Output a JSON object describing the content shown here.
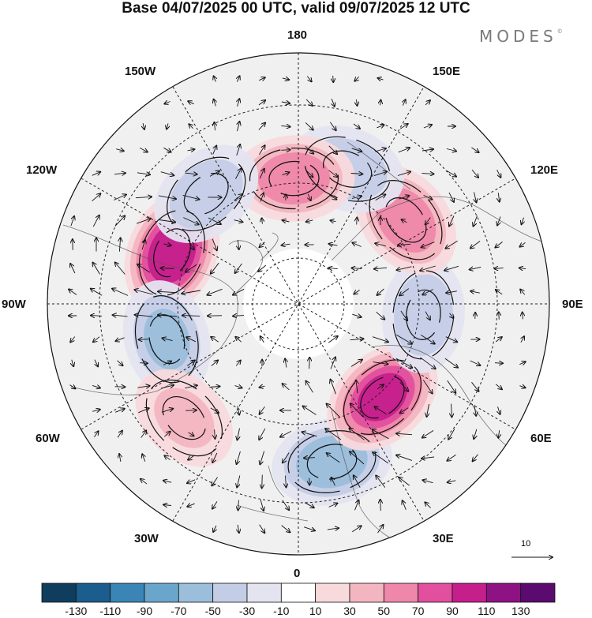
{
  "title": "Base 04/07/2025 00 UTC, valid 09/07/2025 12 UTC",
  "brand": "MODES",
  "brand_mark": "©",
  "longitude_labels": {
    "n180": "180",
    "e150": "150E",
    "e120": "120E",
    "e90": "90E",
    "e60": "60E",
    "e30": "30E",
    "s0": "0",
    "w30": "30W",
    "w60": "60W",
    "w90": "90W",
    "w120": "120W",
    "w150": "150W"
  },
  "reference_vector": {
    "label": "10"
  },
  "colorbar": {
    "ticks": [
      "-130",
      "-110",
      "-90",
      "-70",
      "-50",
      "-30",
      "-10",
      "10",
      "30",
      "50",
      "70",
      "90",
      "110",
      "130"
    ],
    "colors": [
      "#0f3d5e",
      "#1b5d8c",
      "#3a85b5",
      "#6aa6cc",
      "#9bbedb",
      "#c4cde6",
      "#e4e4f0",
      "#ffffff",
      "#f8d9dc",
      "#f3b6c0",
      "#ee87a9",
      "#e14f9e",
      "#c51f8c",
      "#8e1283",
      "#5b0a6f"
    ]
  },
  "map": {
    "projection": "north polar stereographic",
    "anomaly_centers": [
      {
        "lon": -112,
        "lat": 52,
        "value": 110
      },
      {
        "lon": -75,
        "lat": 52,
        "value": -60
      },
      {
        "lon": -45,
        "lat": 45,
        "value": 40
      },
      {
        "lon": 12,
        "lat": 45,
        "value": -70
      },
      {
        "lon": 42,
        "lat": 55,
        "value": 100
      },
      {
        "lon": 85,
        "lat": 55,
        "value": -50
      },
      {
        "lon": 128,
        "lat": 52,
        "value": 70
      },
      {
        "lon": 160,
        "lat": 50,
        "value": -50
      },
      {
        "lon": -178,
        "lat": 55,
        "value": 70
      },
      {
        "lon": -140,
        "lat": 50,
        "value": -50
      }
    ]
  }
}
